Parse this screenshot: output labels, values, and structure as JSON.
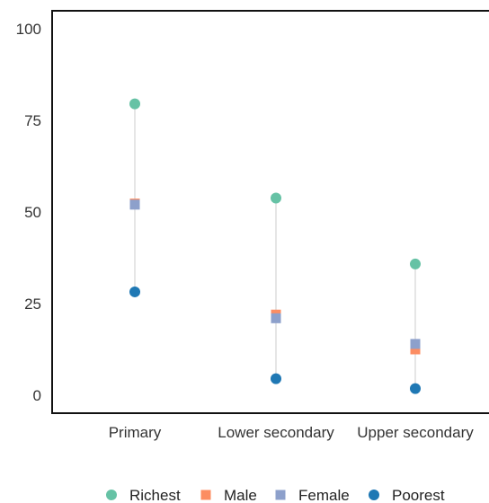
{
  "chart_data": {
    "type": "scatter",
    "title": "",
    "xlabel": "",
    "ylabel": "",
    "categories": [
      "Primary",
      "Lower secondary",
      "Upper secondary"
    ],
    "ylim": [
      0,
      100
    ],
    "yticks": [
      0,
      25,
      50,
      75,
      100
    ],
    "grid": false,
    "legend_position": "bottom",
    "series": [
      {
        "name": "Richest",
        "marker": "circle",
        "color": "#66c2a5",
        "values": [
          79.5,
          53.8,
          35.8
        ]
      },
      {
        "name": "Male",
        "marker": "square",
        "color": "#fc8d62",
        "values": [
          52.3,
          22.0,
          12.5
        ]
      },
      {
        "name": "Female",
        "marker": "square",
        "color": "#8da0cb",
        "values": [
          52.0,
          21.0,
          14.0
        ]
      },
      {
        "name": "Poorest",
        "marker": "circle",
        "color": "#1f78b4",
        "values": [
          28.2,
          4.5,
          1.8
        ]
      }
    ],
    "range_line_color": "#dddddd",
    "axis_color": "#111111"
  }
}
